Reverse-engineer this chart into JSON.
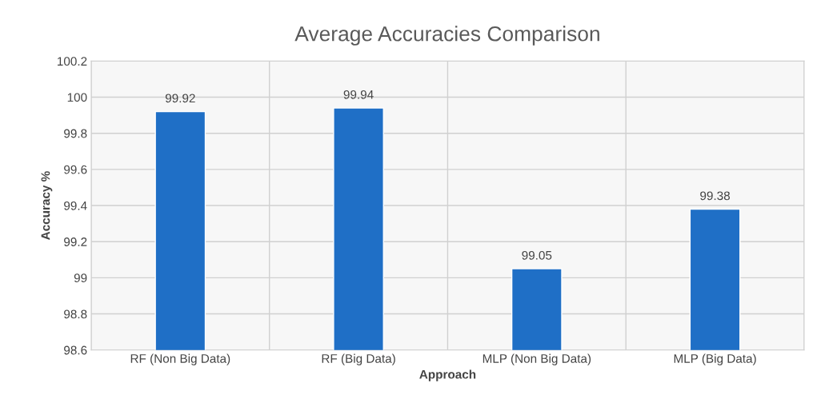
{
  "chart_data": {
    "type": "bar",
    "title": "Average Accuracies Comparison",
    "xlabel": "Approach",
    "ylabel": "Accuracy %",
    "categories": [
      "RF (Non Big Data)",
      "RF (Big Data)",
      "MLP (Non Big Data)",
      "MLP (Big Data)"
    ],
    "values": [
      99.92,
      99.94,
      99.05,
      99.38
    ],
    "color": "#1f6fc6",
    "ylim": [
      98.6,
      100.2
    ],
    "yticks": [
      {
        "value": 98.6,
        "label": "98.6"
      },
      {
        "value": 98.8,
        "label": "98.8"
      },
      {
        "value": 99,
        "label": "99"
      },
      {
        "value": 99.2,
        "label": "99.2"
      },
      {
        "value": 99.4,
        "label": "99.4"
      },
      {
        "value": 99.6,
        "label": "99.6"
      },
      {
        "value": 99.8,
        "label": "99.8"
      },
      {
        "value": 100,
        "label": "100"
      },
      {
        "value": 100.2,
        "label": "100.2"
      }
    ],
    "data_labels": true,
    "grid": "y",
    "legend": false
  }
}
